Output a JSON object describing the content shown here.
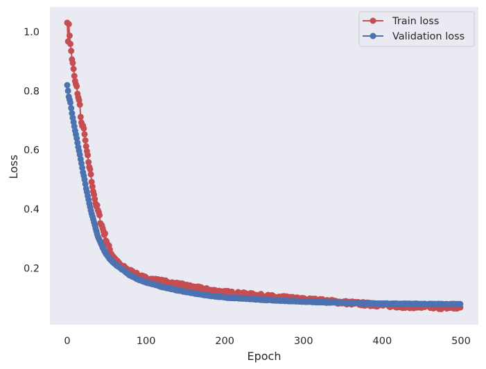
{
  "chart_data": {
    "type": "line",
    "xlabel": "Epoch",
    "ylabel": "Loss",
    "xlim": [
      -22,
      522
    ],
    "ylim": [
      0.0085,
      1.0845
    ],
    "xticks": [
      0,
      100,
      200,
      300,
      400,
      500
    ],
    "yticks": [
      0.2,
      0.4,
      0.6,
      0.8,
      1.0
    ],
    "xtick_labels": [
      "0",
      "100",
      "200",
      "300",
      "400",
      "500"
    ],
    "ytick_labels": [
      "0.2",
      "0.4",
      "0.6",
      "0.8",
      "1.0"
    ],
    "grid": false,
    "legend_position": "top-right",
    "background_color": "#eaeaf2",
    "epochs": 500,
    "series": [
      {
        "name": "Train loss",
        "color": "#c44e52",
        "marker": "circle",
        "key_points": [
          [
            0,
            1.04
          ],
          [
            1,
            0.96
          ],
          [
            2,
            1.03
          ],
          [
            4,
            0.955
          ],
          [
            5,
            0.935
          ],
          [
            6,
            0.91
          ],
          [
            8,
            0.87
          ],
          [
            10,
            0.83
          ],
          [
            12,
            0.81
          ],
          [
            14,
            0.78
          ],
          [
            16,
            0.75
          ],
          [
            18,
            0.69
          ],
          [
            20,
            0.675
          ],
          [
            22,
            0.66
          ],
          [
            24,
            0.605
          ],
          [
            26,
            0.58
          ],
          [
            28,
            0.535
          ],
          [
            30,
            0.52
          ],
          [
            32,
            0.47
          ],
          [
            34,
            0.455
          ],
          [
            36,
            0.42
          ],
          [
            38,
            0.405
          ],
          [
            40,
            0.385
          ],
          [
            42,
            0.36
          ],
          [
            45,
            0.335
          ],
          [
            48,
            0.31
          ],
          [
            52,
            0.275
          ],
          [
            56,
            0.25
          ],
          [
            60,
            0.235
          ],
          [
            65,
            0.215
          ],
          [
            70,
            0.205
          ],
          [
            80,
            0.19
          ],
          [
            90,
            0.175
          ],
          [
            100,
            0.165
          ],
          [
            120,
            0.155
          ],
          [
            140,
            0.145
          ],
          [
            160,
            0.135
          ],
          [
            180,
            0.125
          ],
          [
            200,
            0.118
          ],
          [
            220,
            0.113
          ],
          [
            240,
            0.108
          ],
          [
            260,
            0.103
          ],
          [
            280,
            0.098
          ],
          [
            300,
            0.094
          ],
          [
            320,
            0.09
          ],
          [
            340,
            0.086
          ],
          [
            360,
            0.082
          ],
          [
            380,
            0.078
          ],
          [
            400,
            0.075
          ],
          [
            420,
            0.072
          ],
          [
            440,
            0.07
          ],
          [
            460,
            0.068
          ],
          [
            480,
            0.067
          ],
          [
            500,
            0.066
          ]
        ]
      },
      {
        "name": "Validation loss",
        "color": "#4c72b0",
        "marker": "circle",
        "key_points": [
          [
            0,
            0.82
          ],
          [
            1,
            0.8
          ],
          [
            2,
            0.78
          ],
          [
            4,
            0.76
          ],
          [
            6,
            0.725
          ],
          [
            8,
            0.695
          ],
          [
            10,
            0.665
          ],
          [
            12,
            0.64
          ],
          [
            14,
            0.61
          ],
          [
            16,
            0.585
          ],
          [
            18,
            0.555
          ],
          [
            20,
            0.525
          ],
          [
            22,
            0.5
          ],
          [
            24,
            0.47
          ],
          [
            26,
            0.445
          ],
          [
            28,
            0.42
          ],
          [
            30,
            0.395
          ],
          [
            32,
            0.375
          ],
          [
            34,
            0.355
          ],
          [
            36,
            0.335
          ],
          [
            38,
            0.315
          ],
          [
            40,
            0.3
          ],
          [
            45,
            0.27
          ],
          [
            50,
            0.245
          ],
          [
            55,
            0.228
          ],
          [
            60,
            0.215
          ],
          [
            70,
            0.195
          ],
          [
            80,
            0.175
          ],
          [
            90,
            0.162
          ],
          [
            100,
            0.152
          ],
          [
            120,
            0.137
          ],
          [
            140,
            0.125
          ],
          [
            160,
            0.115
          ],
          [
            180,
            0.107
          ],
          [
            200,
            0.101
          ],
          [
            240,
            0.094
          ],
          [
            280,
            0.089
          ],
          [
            320,
            0.085
          ],
          [
            360,
            0.082
          ],
          [
            400,
            0.08
          ],
          [
            440,
            0.079
          ],
          [
            480,
            0.078
          ],
          [
            500,
            0.078
          ]
        ]
      }
    ]
  }
}
